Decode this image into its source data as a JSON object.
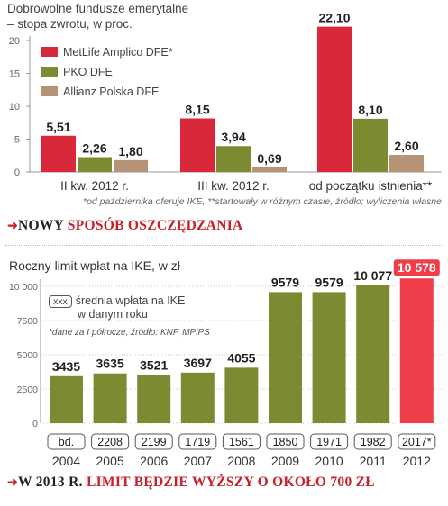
{
  "colors": {
    "metlife": "#d9283a",
    "pko": "#7d8a32",
    "allianz": "#b79376",
    "ike_bar": "#7d8a32",
    "ike_highlight": "#ef3d4a",
    "accent": "#c7202a"
  },
  "chart1": {
    "title_line1": "Dobrowolne fundusze emerytalne",
    "title_line2": "– stopa zwrotu, w proc.",
    "yticks": [
      "0",
      "5",
      "10",
      "15",
      "20"
    ],
    "footnote": "*od października oferuje IKE, **startowały w różnym czasie, źródło: wyliczenia własne"
  },
  "headline1": {
    "prefix": "NOWY ",
    "emphasis": "SPOSÓB OSZCZĘDZANIA"
  },
  "chart2": {
    "title": "Roczny limit wpłat na IKE, w zł",
    "legend_box": "xxx",
    "legend_line1": "średnia wpłata na IKE",
    "legend_line2": "w danym roku",
    "footnote": "*dane za I półrocze, źródło: KNF, MPiPS",
    "yticks": [
      "0",
      "2500",
      "5000",
      "7500",
      "10 000"
    ]
  },
  "headline2": {
    "prefix": "W 2013 R. ",
    "emphasis": "LIMIT BĘDZIE WYŻSZY O OKOŁO 700 ZŁ"
  },
  "chart_data": [
    {
      "type": "bar",
      "title": "Dobrowolne fundusze emerytalne – stopa zwrotu, w proc.",
      "categories": [
        "II kw. 2012 r.",
        "III kw. 2012 r.",
        "od początku istnienia**"
      ],
      "series": [
        {
          "name": "MetLife Amplico DFE*",
          "values": [
            5.51,
            8.15,
            22.1
          ],
          "labels": [
            "5,51",
            "8,15",
            "22,10"
          ]
        },
        {
          "name": "PKO DFE",
          "values": [
            2.26,
            3.94,
            8.1
          ],
          "labels": [
            "2,26",
            "3,94",
            "8,10"
          ]
        },
        {
          "name": "Allianz Polska DFE",
          "values": [
            1.8,
            0.69,
            2.6
          ],
          "labels": [
            "1,80",
            "0,69",
            "2,60"
          ]
        }
      ],
      "ylim": [
        0,
        22
      ],
      "legend": "top-left",
      "grid": false
    },
    {
      "type": "bar",
      "title": "Roczny limit wpłat na IKE, w zł",
      "categories": [
        "2004",
        "2005",
        "2006",
        "2007",
        "2008",
        "2009",
        "2010",
        "2011",
        "2012"
      ],
      "values": [
        3435,
        3635,
        3521,
        3697,
        4055,
        9579,
        9579,
        10077,
        10578
      ],
      "value_labels": [
        "3435",
        "3635",
        "3521",
        "3697",
        "4055",
        "9579",
        "9579",
        "10 077",
        "10 578"
      ],
      "average_payment_labels": [
        "bd.",
        "2208",
        "2199",
        "1719",
        "1561",
        "1850",
        "1971",
        "1982",
        "2017*"
      ],
      "ylim": [
        0,
        10578
      ],
      "grid": true
    }
  ]
}
